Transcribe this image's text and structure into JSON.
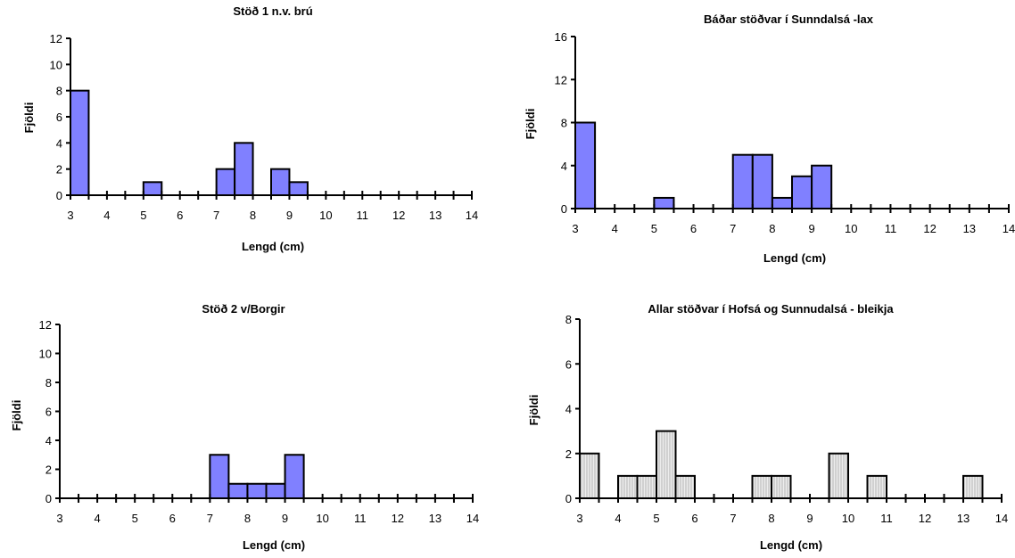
{
  "chart_data": [
    {
      "type": "bar",
      "title": "Stöð 1 n.v. brú",
      "xlabel": "Lengd (cm)",
      "ylabel": "Fjöldi",
      "ylim": [
        0,
        12
      ],
      "yticks": [
        0,
        2,
        4,
        6,
        8,
        10,
        12
      ],
      "xlim": [
        3,
        14
      ],
      "xticks": [
        3,
        4,
        5,
        6,
        7,
        8,
        9,
        10,
        11,
        12,
        13,
        14
      ],
      "bin_width": 0.5,
      "bar_color": "#8080ff",
      "bar_pattern": "solid",
      "bins": [
        3.0,
        3.5,
        4.0,
        4.5,
        5.0,
        5.5,
        6.0,
        6.5,
        7.0,
        7.5,
        8.0,
        8.5,
        9.0,
        9.5,
        10.0,
        10.5,
        11.0,
        11.5,
        12.0,
        12.5,
        13.0,
        13.5
      ],
      "values": [
        8,
        0,
        0,
        0,
        1,
        0,
        0,
        0,
        2,
        4,
        0,
        2,
        1,
        0,
        0,
        0,
        0,
        0,
        0,
        0,
        0,
        0
      ],
      "grid": false,
      "legend": "none"
    },
    {
      "type": "bar",
      "title": "Báðar stöðvar í Sunndalsá -lax",
      "xlabel": "Lengd (cm)",
      "ylabel": "Fjöldi",
      "ylim": [
        0,
        16
      ],
      "yticks": [
        0,
        4,
        8,
        12,
        16
      ],
      "xlim": [
        3,
        14
      ],
      "xticks": [
        3,
        4,
        5,
        6,
        7,
        8,
        9,
        10,
        11,
        12,
        13,
        14
      ],
      "bin_width": 0.5,
      "bar_color": "#8080ff",
      "bar_pattern": "solid",
      "bins": [
        3.0,
        3.5,
        4.0,
        4.5,
        5.0,
        5.5,
        6.0,
        6.5,
        7.0,
        7.5,
        8.0,
        8.5,
        9.0,
        9.5,
        10.0,
        10.5,
        11.0,
        11.5,
        12.0,
        12.5,
        13.0,
        13.5
      ],
      "values": [
        8,
        0,
        0,
        0,
        1,
        0,
        0,
        0,
        5,
        5,
        1,
        3,
        4,
        0,
        0,
        0,
        0,
        0,
        0,
        0,
        0,
        0
      ],
      "grid": false,
      "legend": "none"
    },
    {
      "type": "bar",
      "title": "Stöð 2 v/Borgir",
      "xlabel": "Lengd (cm)",
      "ylabel": "Fjöldi",
      "ylim": [
        0,
        12
      ],
      "yticks": [
        0,
        2,
        4,
        6,
        8,
        10,
        12
      ],
      "xlim": [
        3,
        14
      ],
      "xticks": [
        3,
        4,
        5,
        6,
        7,
        8,
        9,
        10,
        11,
        12,
        13,
        14
      ],
      "bin_width": 0.5,
      "bar_color": "#8080ff",
      "bar_pattern": "solid",
      "bins": [
        3.0,
        3.5,
        4.0,
        4.5,
        5.0,
        5.5,
        6.0,
        6.5,
        7.0,
        7.5,
        8.0,
        8.5,
        9.0,
        9.5,
        10.0,
        10.5,
        11.0,
        11.5,
        12.0,
        12.5,
        13.0,
        13.5
      ],
      "values": [
        0,
        0,
        0,
        0,
        0,
        0,
        0,
        0,
        3,
        1,
        1,
        1,
        3,
        0,
        0,
        0,
        0,
        0,
        0,
        0,
        0,
        0
      ],
      "grid": false,
      "legend": "none"
    },
    {
      "type": "bar",
      "title": "Allar stöðvar í Hofsá og Sunnudalsá - bleikja",
      "xlabel": "Lengd (cm)",
      "ylabel": "Fjöldi",
      "ylim": [
        0,
        8
      ],
      "yticks": [
        0,
        2,
        4,
        6,
        8
      ],
      "xlim": [
        3,
        14
      ],
      "xticks": [
        3,
        4,
        5,
        6,
        7,
        8,
        9,
        10,
        11,
        12,
        13,
        14
      ],
      "bin_width": 0.5,
      "bar_color": "#e4e4e4",
      "bar_pattern": "hatched",
      "bins": [
        3.0,
        3.5,
        4.0,
        4.5,
        5.0,
        5.5,
        6.0,
        6.5,
        7.0,
        7.5,
        8.0,
        8.5,
        9.0,
        9.5,
        10.0,
        10.5,
        11.0,
        11.5,
        12.0,
        12.5,
        13.0,
        13.5
      ],
      "values": [
        2,
        0,
        1,
        1,
        3,
        1,
        0,
        0,
        0,
        1,
        1,
        0,
        0,
        2,
        0,
        1,
        0,
        0,
        0,
        0,
        1,
        0
      ],
      "grid": false,
      "legend": "none"
    }
  ]
}
